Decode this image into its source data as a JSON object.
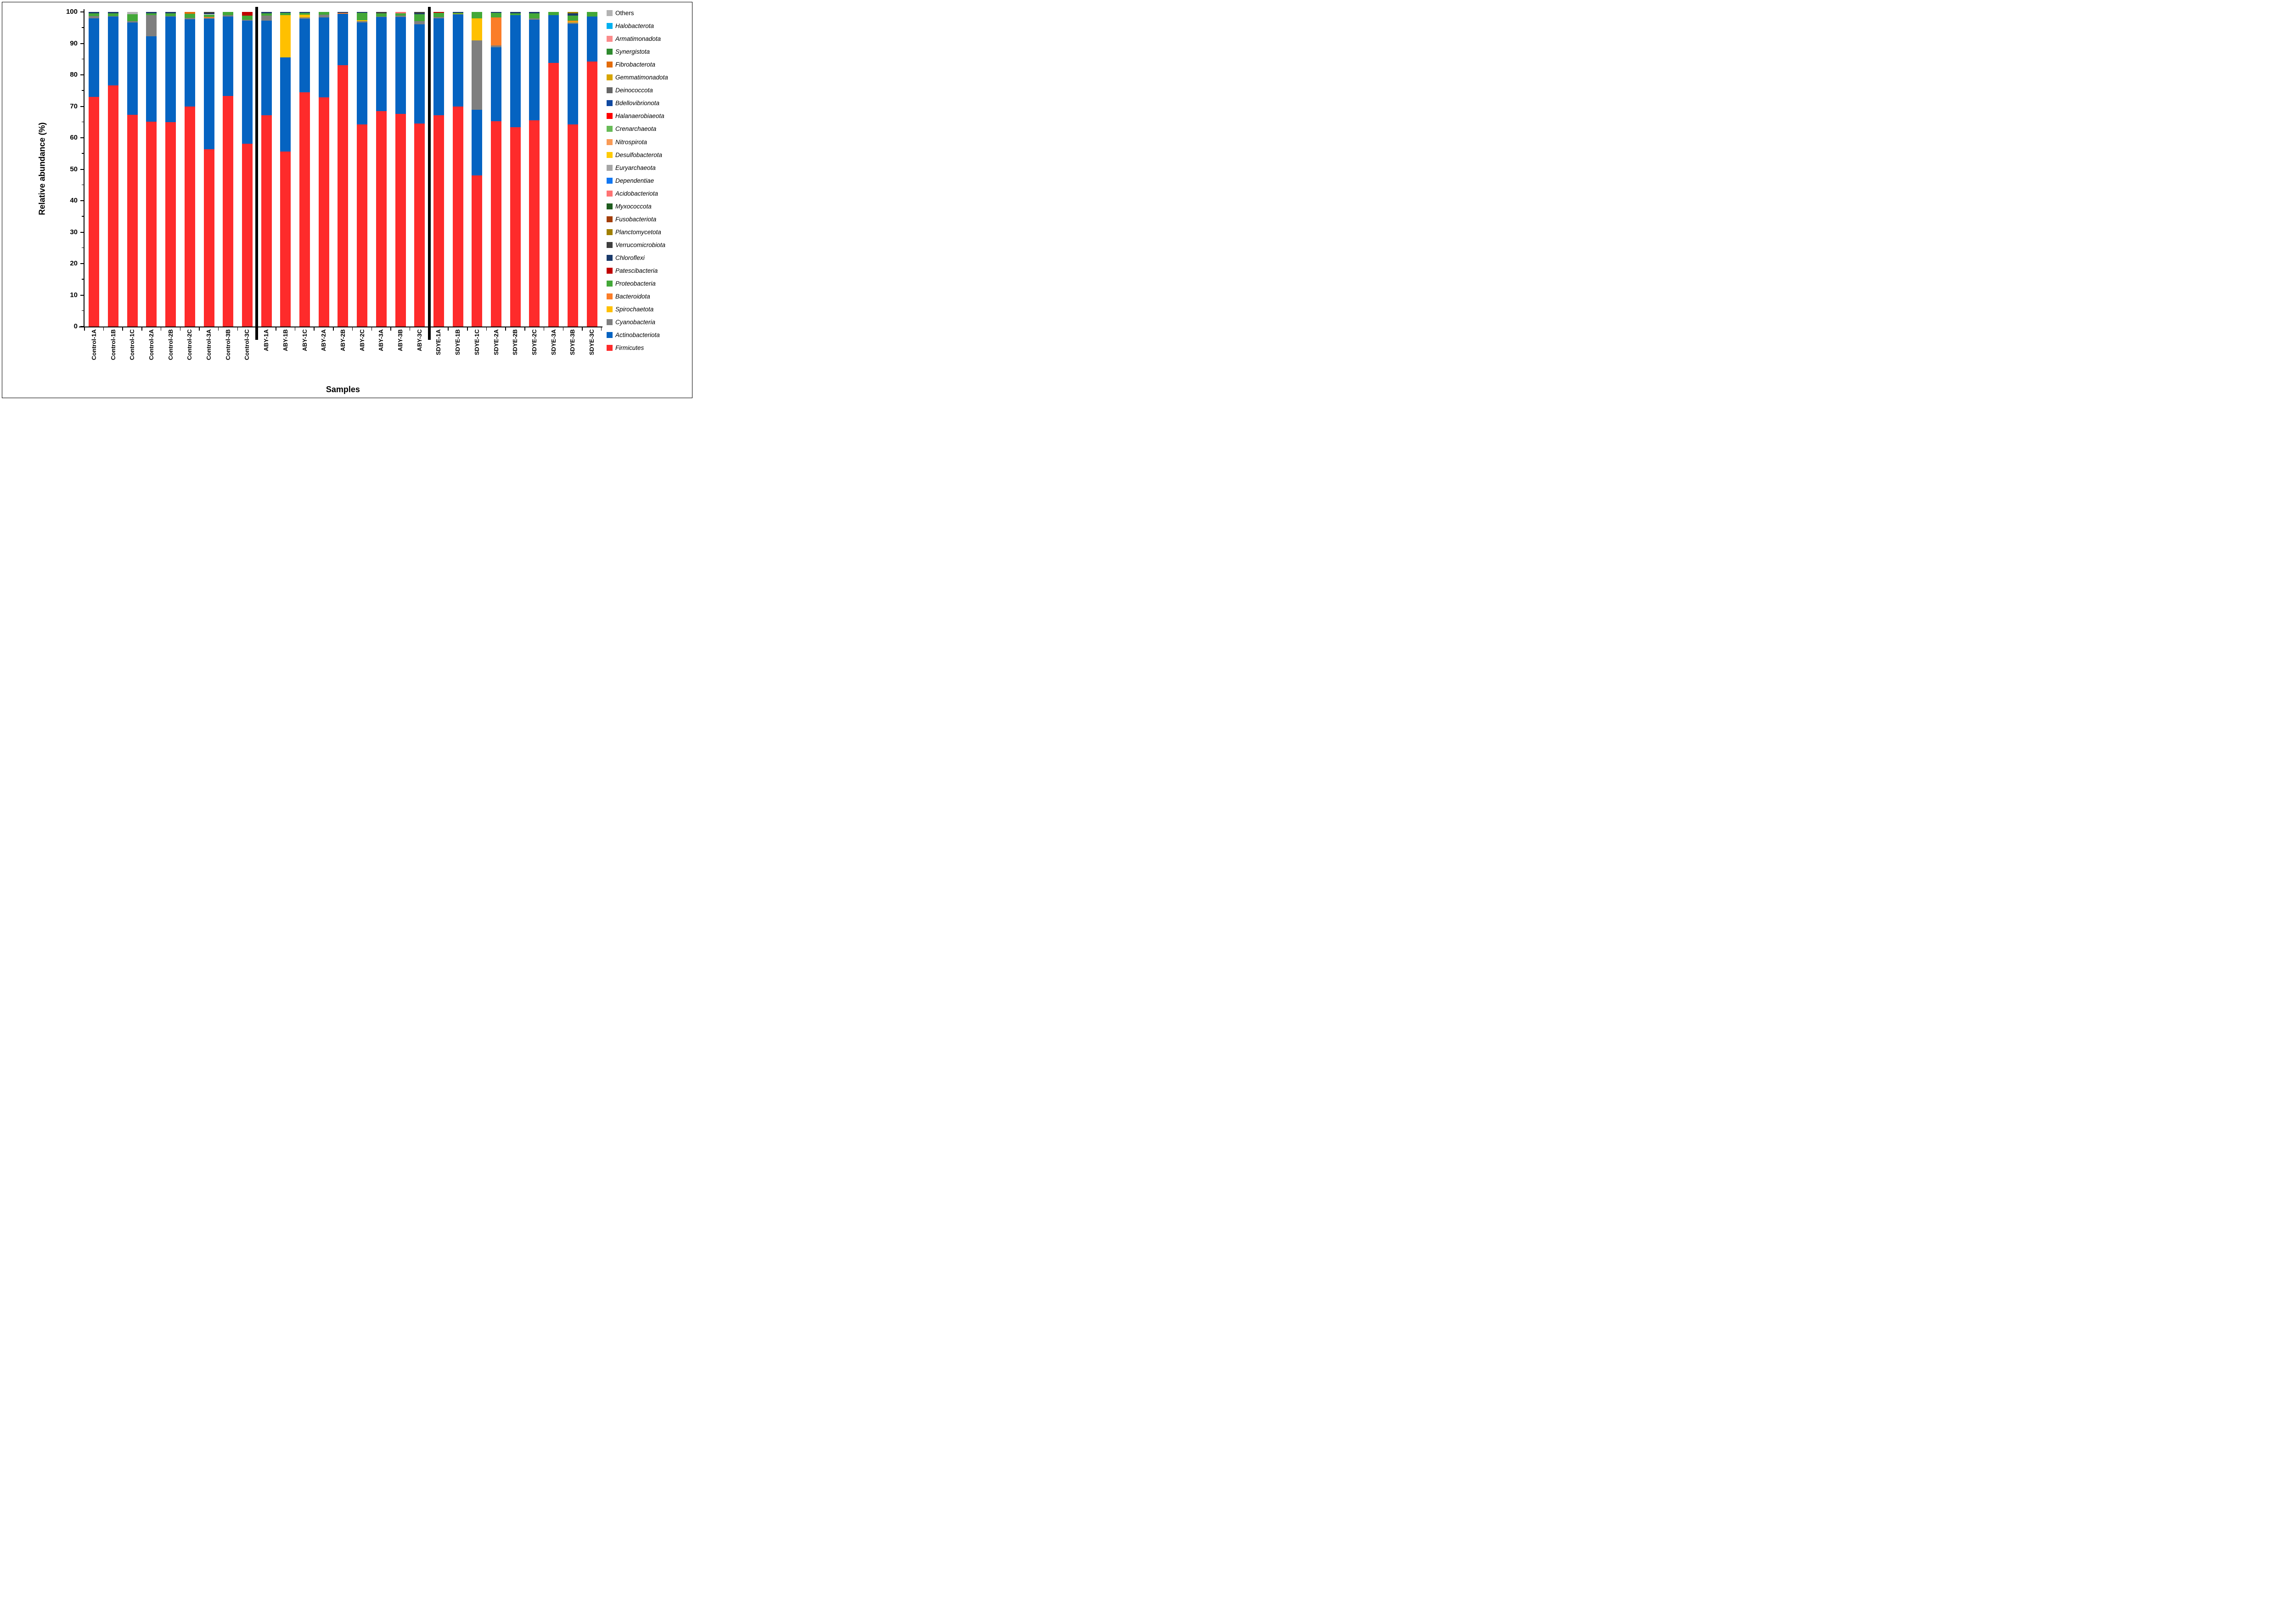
{
  "y_axis": {
    "title": "Relative abundance (%)",
    "ticks": [
      0,
      10,
      20,
      30,
      40,
      50,
      60,
      70,
      80,
      90,
      100
    ],
    "min": 0,
    "max": 100
  },
  "x_axis": {
    "title": "Samples"
  },
  "group_separators_after": [
    "Control-3C",
    "ABY-3C"
  ],
  "chart_data": {
    "type": "bar",
    "stacked": true,
    "title": "",
    "xlabel": "Samples",
    "ylabel": "Relative abundance (%)",
    "ylim": [
      0,
      100
    ],
    "grid": false,
    "legend_position": "right",
    "categories": [
      "Control-1A",
      "Control-1B",
      "Control-1C",
      "Control-2A",
      "Control-2B",
      "Control-2C",
      "Control-3A",
      "Control-3B",
      "Control-3C",
      "ABY-1A",
      "ABY-1B",
      "ABY-1C",
      "ABY-2A",
      "ABY-2B",
      "ABY-2C",
      "ABY-3A",
      "ABY-3B",
      "ABY-3C",
      "SDYE-1A",
      "SDYE-1B",
      "SDYE-1C",
      "SDYE-2A",
      "SDYE-2B",
      "SDYE-2C",
      "SDYE-3A",
      "SDYE-3B",
      "SDYE-3C"
    ],
    "series": [
      {
        "name": "Firmicutes",
        "color": "#FE2B2B",
        "italic": true,
        "values": [
          73.0,
          76.7,
          67.3,
          65.1,
          64.9,
          69.9,
          56.3,
          73.3,
          58.1,
          67.1,
          55.6,
          74.4,
          72.8,
          83.0,
          64.2,
          68.5,
          67.6,
          64.6,
          67.2,
          69.9,
          48.1,
          65.3,
          63.4,
          65.5,
          83.8,
          64.3,
          84.3
        ]
      },
      {
        "name": "Actinobacteriota",
        "color": "#0563C1",
        "italic": true,
        "values": [
          24.9,
          21.8,
          29.4,
          27.1,
          33.6,
          27.8,
          41.55,
          25.2,
          39.2,
          30.2,
          29.9,
          23.45,
          25.5,
          16.45,
          32.5,
          29.9,
          30.8,
          31.5,
          30.7,
          29.35,
          20.8,
          23.5,
          35.6,
          32.0,
          15.2,
          31.9,
          14.3
        ]
      },
      {
        "name": "Cyanobacteria",
        "color": "#7F7F7F",
        "italic": true,
        "values": [
          0.75,
          0.2,
          0.4,
          6.8,
          0.2,
          0.4,
          0.25,
          0.55,
          0.2,
          1.5,
          0,
          0.45,
          0.85,
          0,
          0.4,
          0.2,
          0.45,
          0.95,
          0.5,
          0,
          22.1,
          0.6,
          0,
          0.5,
          0,
          0.4,
          0
        ]
      },
      {
        "name": "Spirochaetota",
        "color": "#FFC000",
        "italic": true,
        "values": [
          0,
          0,
          0,
          0,
          0,
          0,
          0,
          0,
          0,
          0,
          13.5,
          0.8,
          0,
          0,
          0.3,
          0,
          0,
          0,
          0,
          0.15,
          7.0,
          0,
          0,
          0,
          0,
          0.3,
          0
        ]
      },
      {
        "name": "Bacteroidota",
        "color": "#FB7D28",
        "italic": true,
        "values": [
          0,
          0,
          0,
          0,
          0,
          0,
          0.35,
          0,
          0,
          0,
          0,
          0,
          0,
          0.25,
          0,
          0,
          0,
          0,
          0,
          0,
          0,
          8.8,
          0,
          0,
          0,
          0.3,
          0
        ]
      },
      {
        "name": "Proteobacteria",
        "color": "#43A838",
        "italic": true,
        "values": [
          0.9,
          0.8,
          2.2,
          0.5,
          0.8,
          1.3,
          0.75,
          0.95,
          1.3,
          0.8,
          0.7,
          0.6,
          0.85,
          0,
          2.3,
          1.0,
          0.65,
          2.25,
          1.35,
          0.3,
          2.0,
          1.5,
          0.6,
          1.6,
          1.0,
          1.7,
          1.4
        ]
      },
      {
        "name": "Patescibacteria",
        "color": "#C00000",
        "italic": true,
        "values": [
          0,
          0,
          0,
          0,
          0,
          0,
          0,
          0,
          1.2,
          0,
          0,
          0,
          0,
          0,
          0,
          0,
          0,
          0,
          0.25,
          0,
          0,
          0,
          0,
          0,
          0,
          0,
          0
        ]
      },
      {
        "name": "Chloroflexi",
        "color": "#1A3A6B",
        "italic": true,
        "values": [
          0.45,
          0.5,
          0,
          0.5,
          0.5,
          0,
          0.35,
          0,
          0,
          0.4,
          0.3,
          0.3,
          0,
          0.3,
          0.3,
          0,
          0,
          0.3,
          0,
          0.3,
          0,
          0.3,
          0.4,
          0.4,
          0,
          0.7,
          0
        ]
      },
      {
        "name": "Verrucomicrobiota",
        "color": "#3F3F3F",
        "italic": true,
        "values": [
          0,
          0,
          0,
          0,
          0,
          0,
          0.45,
          0,
          0,
          0,
          0,
          0,
          0,
          0,
          0,
          0.4,
          0,
          0.4,
          0,
          0,
          0,
          0,
          0,
          0,
          0,
          0,
          0
        ]
      },
      {
        "name": "Planctomycetota",
        "color": "#A08000",
        "italic": true,
        "values": [
          0,
          0,
          0,
          0,
          0,
          0,
          0,
          0,
          0,
          0,
          0,
          0,
          0,
          0,
          0,
          0,
          0,
          0,
          0,
          0,
          0,
          0,
          0,
          0,
          0,
          0.4,
          0
        ]
      },
      {
        "name": "Fusobacteriota",
        "color": "#A33E09",
        "italic": true,
        "values": [
          0,
          0,
          0,
          0,
          0,
          0,
          0,
          0,
          0,
          0,
          0,
          0,
          0,
          0,
          0,
          0,
          0,
          0,
          0,
          0,
          0,
          0,
          0,
          0,
          0,
          0,
          0
        ]
      },
      {
        "name": "Myxococcota",
        "color": "#1E5C1E",
        "italic": true,
        "values": [
          0,
          0,
          0,
          0,
          0,
          0,
          0,
          0,
          0,
          0,
          0,
          0,
          0,
          0,
          0,
          0,
          0,
          0,
          0,
          0,
          0,
          0,
          0,
          0,
          0,
          0,
          0
        ]
      },
      {
        "name": "Acidobacteriota",
        "color": "#FF7373",
        "italic": true,
        "values": [
          0,
          0,
          0,
          0,
          0,
          0,
          0,
          0,
          0,
          0,
          0,
          0,
          0,
          0,
          0,
          0,
          0.5,
          0,
          0,
          0,
          0,
          0,
          0,
          0,
          0,
          0,
          0
        ]
      },
      {
        "name": "Dependentiae",
        "color": "#1177F2",
        "italic": true,
        "values": [
          0,
          0,
          0,
          0,
          0,
          0,
          0,
          0,
          0,
          0,
          0,
          0,
          0,
          0,
          0,
          0,
          0,
          0,
          0,
          0,
          0,
          0,
          0,
          0,
          0,
          0,
          0
        ]
      },
      {
        "name": "Euryarchaeota",
        "color": "#A6A6A6",
        "italic": true,
        "values": [
          0,
          0,
          0,
          0,
          0,
          0,
          0,
          0,
          0,
          0,
          0,
          0,
          0,
          0,
          0,
          0,
          0,
          0,
          0,
          0,
          0,
          0,
          0,
          0,
          0,
          0,
          0
        ]
      },
      {
        "name": "Desulfobacterota",
        "color": "#FFCB05",
        "italic": true,
        "values": [
          0,
          0,
          0,
          0,
          0,
          0,
          0,
          0,
          0,
          0,
          0,
          0,
          0,
          0,
          0,
          0,
          0,
          0,
          0,
          0,
          0,
          0,
          0,
          0,
          0,
          0,
          0
        ]
      },
      {
        "name": "Nitrospirota",
        "color": "#F99B57",
        "italic": true,
        "values": [
          0,
          0,
          0,
          0,
          0,
          0,
          0,
          0,
          0,
          0,
          0,
          0,
          0,
          0,
          0,
          0,
          0,
          0,
          0,
          0,
          0,
          0,
          0,
          0,
          0,
          0,
          0
        ]
      },
      {
        "name": "Crenarchaeota",
        "color": "#67BB57",
        "italic": true,
        "values": [
          0,
          0,
          0,
          0,
          0,
          0,
          0,
          0,
          0,
          0,
          0,
          0,
          0,
          0,
          0,
          0,
          0,
          0,
          0,
          0,
          0,
          0,
          0,
          0,
          0,
          0,
          0
        ]
      },
      {
        "name": "Halanaerobiaeota",
        "color": "#FF0000",
        "italic": true,
        "values": [
          0,
          0,
          0,
          0,
          0,
          0,
          0,
          0,
          0,
          0,
          0,
          0,
          0,
          0,
          0,
          0,
          0,
          0,
          0,
          0,
          0,
          0,
          0,
          0,
          0,
          0,
          0
        ]
      },
      {
        "name": "Bdellovibrionota",
        "color": "#1049A0",
        "italic": true,
        "values": [
          0,
          0,
          0,
          0,
          0,
          0,
          0,
          0,
          0,
          0,
          0,
          0,
          0,
          0,
          0,
          0,
          0,
          0,
          0,
          0,
          0,
          0,
          0,
          0,
          0,
          0,
          0
        ]
      },
      {
        "name": "Deinococcota",
        "color": "#666666",
        "italic": true,
        "values": [
          0,
          0,
          0,
          0,
          0,
          0,
          0,
          0,
          0,
          0,
          0,
          0,
          0,
          0,
          0,
          0,
          0,
          0,
          0,
          0,
          0,
          0,
          0,
          0,
          0,
          0,
          0
        ]
      },
      {
        "name": "Gemmatimonadota",
        "color": "#D7A500",
        "italic": true,
        "values": [
          0,
          0,
          0,
          0,
          0,
          0,
          0,
          0,
          0,
          0,
          0,
          0,
          0,
          0,
          0,
          0,
          0,
          0,
          0,
          0,
          0,
          0,
          0,
          0,
          0,
          0,
          0
        ]
      },
      {
        "name": "Fibrobacterota",
        "color": "#E36C0A",
        "italic": true,
        "values": [
          0,
          0,
          0,
          0,
          0,
          0.6,
          0,
          0,
          0,
          0,
          0,
          0,
          0,
          0,
          0,
          0,
          0,
          0,
          0,
          0,
          0,
          0,
          0,
          0,
          0,
          0,
          0
        ]
      },
      {
        "name": "Synergistota",
        "color": "#2E8B2E",
        "italic": true,
        "values": [
          0,
          0,
          0,
          0,
          0,
          0,
          0,
          0,
          0,
          0,
          0,
          0,
          0,
          0,
          0,
          0,
          0,
          0,
          0,
          0,
          0,
          0,
          0,
          0,
          0,
          0,
          0
        ]
      },
      {
        "name": "Armatimonadota",
        "color": "#FB8B8B",
        "italic": true,
        "values": [
          0,
          0,
          0,
          0,
          0,
          0,
          0,
          0,
          0,
          0,
          0,
          0,
          0,
          0,
          0,
          0,
          0,
          0,
          0,
          0,
          0,
          0,
          0,
          0,
          0,
          0,
          0
        ]
      },
      {
        "name": "Halobacterota",
        "color": "#00B0F0",
        "italic": true,
        "values": [
          0,
          0,
          0,
          0,
          0,
          0,
          0,
          0,
          0,
          0,
          0,
          0,
          0,
          0,
          0,
          0,
          0,
          0,
          0,
          0,
          0,
          0,
          0,
          0,
          0,
          0,
          0
        ]
      },
      {
        "name": "Others",
        "color": "#B3B3B3",
        "italic": false,
        "values": [
          0,
          0,
          0.7,
          0,
          0,
          0,
          0,
          0,
          0,
          0,
          0,
          0,
          0,
          0,
          0,
          0,
          0,
          0,
          0,
          0,
          0,
          0,
          0,
          0,
          0,
          0,
          0
        ]
      }
    ]
  }
}
